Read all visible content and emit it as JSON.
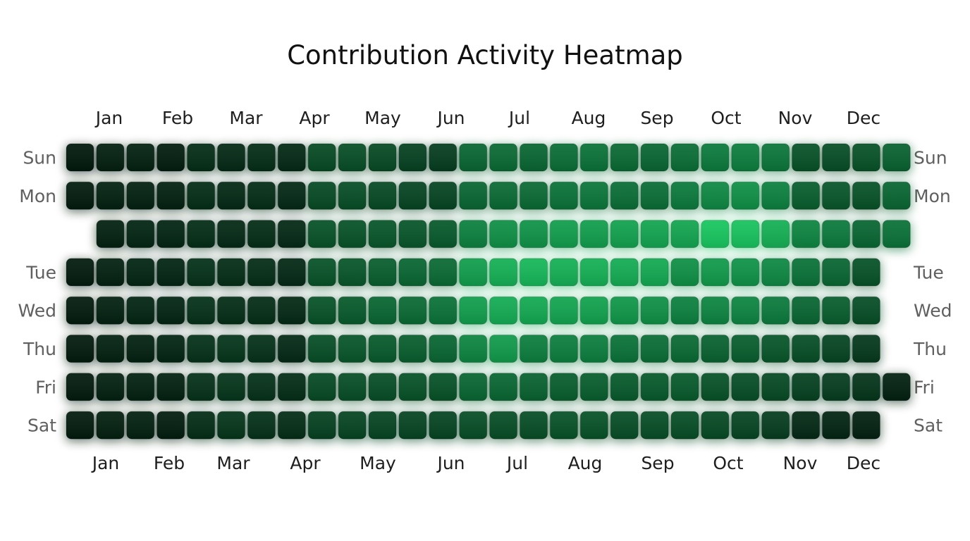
{
  "chart_data": {
    "type": "heatmap",
    "title": "Contribution Activity Heatmap",
    "months_top": [
      "Jan",
      "Feb",
      "Mar",
      "Apr",
      "May",
      "Jun",
      "Jul",
      "Aug",
      "Sep",
      "Oct",
      "Nov",
      "Dec"
    ],
    "months_bottom": [
      "Jan",
      "Feb",
      "Mar",
      "Apr",
      "May",
      "Jun",
      "Jul",
      "Aug",
      "Sep",
      "Oct",
      "Nov",
      "Dec"
    ],
    "row_labels_left": [
      "Sun",
      "Mon",
      "",
      "Tue",
      "Wed",
      "Thu",
      "Fri",
      "Sat"
    ],
    "row_labels_right": [
      "Sun",
      "Mon",
      "",
      "Tue",
      "Wed",
      "Thu",
      "Fri",
      "Sat"
    ],
    "weeks": 28,
    "value_range": [
      0,
      1
    ],
    "colors": {
      "low": "#02150b",
      "mid": "#0b7a3c",
      "high": "#1bd466"
    },
    "values": [
      [
        0.02,
        0.05,
        0.06,
        0.04,
        0.12,
        0.1,
        0.12,
        0.1,
        0.26,
        0.28,
        0.26,
        0.22,
        0.2,
        0.4,
        0.42,
        0.4,
        0.44,
        0.46,
        0.42,
        0.4,
        0.44,
        0.5,
        0.52,
        0.48,
        0.3,
        0.28,
        0.3,
        0.38
      ],
      [
        0.03,
        0.06,
        0.06,
        0.06,
        0.12,
        0.1,
        0.12,
        0.1,
        0.26,
        0.28,
        0.26,
        0.24,
        0.24,
        0.4,
        0.42,
        0.42,
        0.46,
        0.48,
        0.44,
        0.44,
        0.5,
        0.58,
        0.62,
        0.54,
        0.36,
        0.32,
        0.3,
        0.4
      ],
      [
        null,
        0.06,
        0.08,
        0.08,
        0.12,
        0.1,
        0.12,
        0.1,
        0.3,
        0.3,
        0.32,
        0.32,
        0.34,
        0.54,
        0.62,
        0.64,
        0.7,
        0.7,
        0.72,
        0.74,
        0.74,
        0.92,
        0.9,
        0.8,
        0.56,
        0.5,
        0.4,
        0.46
      ],
      [
        0.03,
        0.06,
        0.08,
        0.08,
        0.14,
        0.12,
        0.12,
        0.1,
        0.3,
        0.32,
        0.36,
        0.4,
        0.42,
        0.7,
        0.8,
        0.84,
        0.8,
        0.8,
        0.78,
        0.76,
        0.62,
        0.68,
        0.64,
        0.58,
        0.46,
        0.4,
        0.3,
        null
      ],
      [
        0.03,
        0.06,
        0.08,
        0.08,
        0.14,
        0.12,
        0.12,
        0.1,
        0.3,
        0.34,
        0.4,
        0.42,
        0.46,
        0.7,
        0.78,
        0.76,
        0.74,
        0.72,
        0.66,
        0.62,
        0.54,
        0.56,
        0.56,
        0.5,
        0.4,
        0.36,
        0.28,
        null
      ],
      [
        0.03,
        0.06,
        0.06,
        0.08,
        0.14,
        0.16,
        0.14,
        0.1,
        0.28,
        0.32,
        0.34,
        0.36,
        0.4,
        0.56,
        0.68,
        0.52,
        0.52,
        0.52,
        0.46,
        0.44,
        0.42,
        0.38,
        0.36,
        0.32,
        0.28,
        0.24,
        0.18,
        null
      ],
      [
        0.03,
        0.06,
        0.06,
        0.06,
        0.14,
        0.16,
        0.14,
        0.12,
        0.26,
        0.28,
        0.28,
        0.3,
        0.3,
        0.4,
        0.4,
        0.38,
        0.36,
        0.36,
        0.34,
        0.34,
        0.34,
        0.3,
        0.28,
        0.26,
        0.22,
        0.2,
        0.16,
        0.06
      ],
      [
        0.03,
        0.05,
        0.06,
        0.04,
        0.12,
        0.16,
        0.14,
        0.12,
        0.22,
        0.24,
        0.24,
        0.24,
        0.24,
        0.28,
        0.28,
        0.28,
        0.3,
        0.3,
        0.28,
        0.28,
        0.28,
        0.26,
        0.24,
        0.2,
        0.1,
        0.08,
        0.06,
        null
      ]
    ]
  }
}
